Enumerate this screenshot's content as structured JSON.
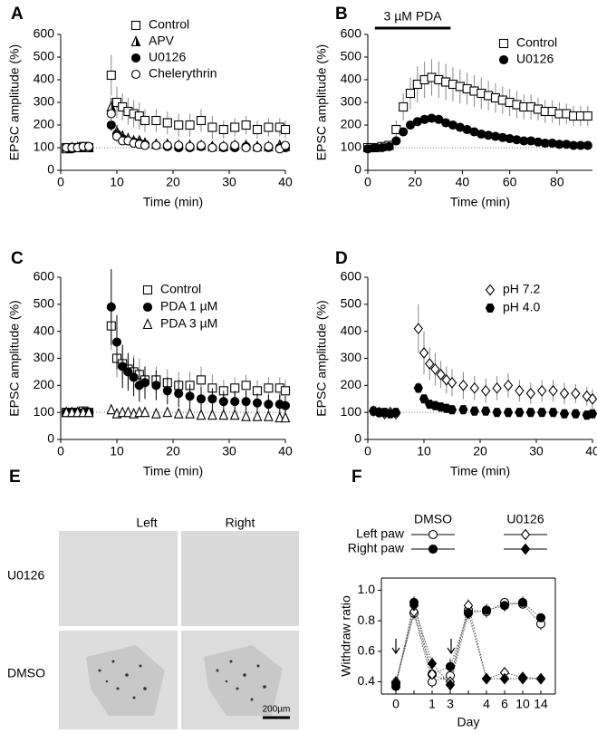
{
  "chart_data": [
    {
      "label": "A",
      "type": "scatter",
      "xlabel": "Time (min)",
      "ylabel": "EPSC amplitude (%)",
      "x": [
        1,
        2,
        3,
        4,
        5,
        9,
        10,
        11,
        12,
        13,
        14,
        15,
        17,
        19,
        21,
        23,
        25,
        27,
        29,
        31,
        33,
        35,
        37,
        39,
        40
      ],
      "xlim": [
        0,
        40
      ],
      "xticks": [
        0,
        10,
        20,
        30,
        40
      ],
      "ylim": [
        0,
        600
      ],
      "yticks": [
        0,
        100,
        200,
        300,
        400,
        500,
        600
      ],
      "reference_line": 100,
      "series": [
        {
          "name": "Control",
          "marker": "square-open",
          "color": "#000",
          "values": [
            100,
            100,
            100,
            105,
            100,
            420,
            300,
            280,
            260,
            250,
            240,
            220,
            220,
            210,
            200,
            200,
            220,
            190,
            180,
            190,
            200,
            180,
            190,
            190,
            180
          ],
          "errors": [
            10,
            10,
            10,
            10,
            10,
            90,
            70,
            60,
            60,
            60,
            60,
            50,
            50,
            50,
            50,
            50,
            50,
            50,
            40,
            40,
            40,
            40,
            40,
            40,
            40
          ]
        },
        {
          "name": "APV",
          "marker": "triangle-half",
          "color": "#000",
          "values": [
            95,
            100,
            100,
            100,
            100,
            280,
            170,
            150,
            140,
            130,
            130,
            120,
            115,
            115,
            110,
            110,
            110,
            105,
            105,
            110,
            110,
            105,
            105,
            110,
            105
          ],
          "errors": [
            10,
            10,
            10,
            10,
            10,
            40,
            30,
            25,
            25,
            20,
            20,
            20,
            20,
            20,
            15,
            15,
            15,
            15,
            15,
            15,
            15,
            15,
            15,
            15,
            15
          ]
        },
        {
          "name": "U0126",
          "marker": "circle-filled",
          "color": "#000",
          "values": [
            100,
            95,
            100,
            100,
            105,
            200,
            160,
            140,
            130,
            125,
            120,
            115,
            110,
            105,
            100,
            100,
            105,
            100,
            100,
            100,
            105,
            100,
            100,
            100,
            100
          ],
          "errors": [
            8,
            8,
            8,
            8,
            8,
            25,
            20,
            18,
            15,
            15,
            15,
            12,
            12,
            12,
            12,
            12,
            12,
            10,
            10,
            10,
            10,
            10,
            10,
            10,
            10
          ]
        },
        {
          "name": "Chelerythrin",
          "marker": "circle-open",
          "color": "#000",
          "values": [
            100,
            100,
            100,
            105,
            105,
            250,
            150,
            130,
            130,
            120,
            115,
            110,
            110,
            110,
            110,
            105,
            110,
            100,
            105,
            110,
            100,
            100,
            105,
            95,
            110
          ],
          "errors": [
            8,
            8,
            8,
            8,
            8,
            35,
            25,
            20,
            20,
            18,
            15,
            15,
            15,
            15,
            15,
            12,
            12,
            12,
            12,
            12,
            12,
            12,
            12,
            12,
            12
          ]
        }
      ]
    },
    {
      "label": "B",
      "type": "scatter",
      "xlabel": "Time (min)",
      "ylabel": "EPSC amplitude (%)",
      "x": [
        0,
        3,
        6,
        9,
        12,
        15,
        18,
        21,
        24,
        27,
        30,
        33,
        36,
        39,
        42,
        45,
        48,
        51,
        54,
        57,
        60,
        63,
        66,
        69,
        72,
        75,
        78,
        81,
        84,
        87,
        90,
        93
      ],
      "xlim": [
        0,
        95
      ],
      "xticks": [
        0,
        20,
        40,
        60,
        80
      ],
      "ylim": [
        0,
        600
      ],
      "yticks": [
        0,
        100,
        200,
        300,
        400,
        500,
        600
      ],
      "reference_line": 100,
      "annotation": {
        "text": "3 µM PDA",
        "start": 3,
        "end": 35
      },
      "series": [
        {
          "name": "Control",
          "marker": "square-open",
          "color": "#000",
          "values": [
            100,
            100,
            105,
            110,
            180,
            280,
            340,
            380,
            400,
            410,
            400,
            390,
            380,
            370,
            360,
            350,
            340,
            330,
            320,
            310,
            300,
            290,
            280,
            280,
            270,
            260,
            260,
            250,
            250,
            240,
            240,
            240
          ],
          "errors": [
            10,
            10,
            15,
            20,
            40,
            60,
            70,
            80,
            80,
            80,
            80,
            80,
            75,
            75,
            70,
            70,
            70,
            65,
            65,
            60,
            60,
            60,
            55,
            55,
            50,
            50,
            50,
            50,
            45,
            45,
            45,
            45
          ]
        },
        {
          "name": "U0126",
          "marker": "circle-filled",
          "color": "#000",
          "values": [
            95,
            100,
            100,
            105,
            130,
            170,
            200,
            215,
            225,
            230,
            225,
            210,
            200,
            190,
            180,
            170,
            160,
            155,
            150,
            145,
            140,
            135,
            130,
            130,
            125,
            120,
            120,
            115,
            115,
            110,
            110,
            110
          ],
          "errors": [
            8,
            8,
            8,
            10,
            15,
            20,
            20,
            20,
            20,
            20,
            20,
            20,
            20,
            18,
            18,
            16,
            16,
            15,
            15,
            14,
            14,
            13,
            13,
            12,
            12,
            12,
            12,
            12,
            11,
            11,
            11,
            11
          ]
        }
      ]
    },
    {
      "label": "C",
      "type": "scatter",
      "xlabel": "Time (min)",
      "ylabel": "EPSC amplitude (%)",
      "x": [
        1,
        2,
        3,
        4,
        5,
        9,
        10,
        11,
        12,
        13,
        14,
        15,
        17,
        19,
        21,
        23,
        25,
        27,
        29,
        31,
        33,
        35,
        37,
        39,
        40
      ],
      "xlim": [
        0,
        40
      ],
      "xticks": [
        0,
        10,
        20,
        30,
        40
      ],
      "ylim": [
        0,
        600
      ],
      "yticks": [
        0,
        100,
        200,
        300,
        400,
        500,
        600
      ],
      "reference_line": 100,
      "series": [
        {
          "name": "Control",
          "marker": "square-open",
          "color": "#000",
          "values": [
            100,
            100,
            100,
            105,
            100,
            420,
            300,
            280,
            260,
            250,
            240,
            220,
            220,
            210,
            200,
            200,
            220,
            190,
            180,
            190,
            200,
            180,
            190,
            190,
            180
          ],
          "errors": [
            10,
            10,
            10,
            10,
            10,
            90,
            70,
            60,
            60,
            60,
            60,
            50,
            50,
            50,
            50,
            50,
            50,
            50,
            40,
            40,
            40,
            40,
            40,
            40,
            40
          ]
        },
        {
          "name": "PDA 1 µM",
          "marker": "circle-filled",
          "color": "#000",
          "values": [
            100,
            100,
            100,
            100,
            100,
            490,
            360,
            270,
            250,
            230,
            200,
            210,
            200,
            180,
            170,
            160,
            150,
            150,
            140,
            140,
            140,
            135,
            130,
            130,
            125
          ],
          "errors": [
            10,
            10,
            10,
            10,
            10,
            140,
            100,
            80,
            70,
            70,
            60,
            60,
            55,
            50,
            50,
            45,
            45,
            40,
            40,
            40,
            40,
            35,
            35,
            35,
            35
          ]
        },
        {
          "name": "PDA 3 µM",
          "marker": "triangle-open",
          "color": "#000",
          "values": [
            100,
            100,
            100,
            100,
            100,
            110,
            95,
            100,
            100,
            95,
            100,
            100,
            95,
            100,
            95,
            95,
            90,
            90,
            90,
            90,
            85,
            85,
            85,
            80,
            80
          ],
          "errors": [
            5,
            5,
            5,
            5,
            5,
            12,
            10,
            10,
            10,
            10,
            10,
            10,
            10,
            10,
            10,
            10,
            10,
            10,
            10,
            10,
            10,
            10,
            10,
            10,
            10
          ]
        }
      ]
    },
    {
      "label": "D",
      "type": "scatter",
      "xlabel": "Time (min)",
      "ylabel": "EPSC amplitude (%)",
      "x": [
        1,
        2,
        3,
        4,
        5,
        9,
        10,
        11,
        12,
        13,
        14,
        15,
        17,
        19,
        21,
        23,
        25,
        27,
        29,
        31,
        33,
        35,
        37,
        39,
        40
      ],
      "xlim": [
        0,
        40
      ],
      "xticks": [
        0,
        10,
        20,
        30,
        40
      ],
      "ylim": [
        0,
        600
      ],
      "yticks": [
        0,
        100,
        200,
        300,
        400,
        500,
        600
      ],
      "reference_line": 100,
      "series": [
        {
          "name": "pH 7.2",
          "marker": "diamond-open",
          "color": "#000",
          "values": [
            105,
            100,
            95,
            100,
            95,
            410,
            320,
            280,
            260,
            240,
            220,
            210,
            200,
            190,
            180,
            190,
            200,
            180,
            170,
            180,
            180,
            170,
            170,
            160,
            150
          ],
          "errors": [
            10,
            10,
            10,
            10,
            10,
            90,
            80,
            60,
            60,
            50,
            50,
            50,
            50,
            45,
            45,
            45,
            45,
            40,
            40,
            40,
            40,
            40,
            35,
            35,
            35
          ]
        },
        {
          "name": "pH 4.0",
          "marker": "hexagon-filled",
          "color": "#000",
          "values": [
            105,
            100,
            100,
            95,
            100,
            190,
            150,
            130,
            125,
            120,
            115,
            110,
            110,
            105,
            105,
            100,
            100,
            100,
            100,
            100,
            100,
            95,
            95,
            90,
            95
          ],
          "errors": [
            8,
            8,
            8,
            8,
            8,
            20,
            15,
            15,
            12,
            12,
            10,
            10,
            10,
            10,
            10,
            10,
            10,
            10,
            10,
            10,
            10,
            10,
            10,
            10,
            10
          ]
        }
      ]
    },
    {
      "label": "F",
      "type": "line",
      "xlabel": "Day",
      "ylabel": "Withdraw ratio",
      "categories": [
        "0",
        null,
        "1",
        "3",
        null,
        "4",
        "6",
        "10",
        "14"
      ],
      "ylim": [
        0.32,
        1.08
      ],
      "yticks": [
        {
          "value": 0.4,
          "label": "0.4"
        },
        {
          "value": 0.6,
          "label": "0.6"
        },
        {
          "value": 0.8,
          "label": "0.8"
        },
        {
          "value": 1.0,
          "label": "1.0"
        }
      ],
      "legend_columns": [
        "DMSO",
        "U0126"
      ],
      "legend_rows": [
        "Left paw",
        "Right paw"
      ],
      "series": [
        {
          "marker": "circle-open",
          "color": "#000",
          "values": [
            0.39,
            0.85,
            0.4,
            0.44,
            0.87,
            0.86,
            0.92,
            0.91,
            0.78
          ],
          "errors": [
            0.03,
            0.04,
            0.04,
            0.04,
            0.04,
            0.04,
            0.03,
            0.03,
            0.04
          ]
        },
        {
          "marker": "circle-filled",
          "color": "#000",
          "values": [
            0.37,
            0.92,
            0.45,
            0.5,
            0.85,
            0.87,
            0.9,
            0.92,
            0.82
          ],
          "errors": [
            0.03,
            0.04,
            0.04,
            0.05,
            0.04,
            0.04,
            0.04,
            0.04,
            0.03
          ]
        },
        {
          "marker": "diamond-open",
          "color": "#000",
          "values": [
            0.4,
            0.86,
            0.45,
            0.4,
            0.9,
            0.42,
            0.46,
            0.43,
            0.42
          ],
          "errors": [
            0.03,
            0.04,
            0.04,
            0.04,
            0.04,
            0.03,
            0.03,
            0.03,
            0.03
          ]
        },
        {
          "marker": "diamond-filled",
          "color": "#000",
          "values": [
            0.39,
            0.9,
            0.52,
            0.38,
            0.85,
            0.42,
            0.42,
            0.42,
            0.42
          ],
          "errors": [
            0.03,
            0.04,
            0.04,
            0.04,
            0.04,
            0.03,
            0.03,
            0.03,
            0.03
          ]
        }
      ]
    }
  ],
  "image_panel": {
    "label": "E",
    "columns": [
      "Left",
      "Right"
    ],
    "rows": [
      "U0126",
      "DMSO"
    ],
    "scale_bar": "200µm"
  }
}
